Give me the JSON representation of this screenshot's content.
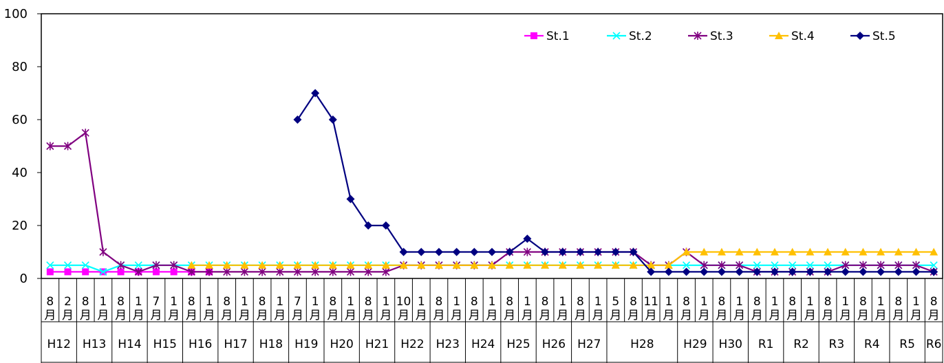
{
  "chart_data": {
    "type": "line",
    "title": "",
    "xlabel": "",
    "ylabel": "",
    "ylim": [
      0,
      100
    ],
    "yticks": [
      "0",
      "20",
      "40",
      "60",
      "80",
      "100"
    ],
    "grid": false,
    "legend_position": "top-right",
    "months": [
      "8",
      "2",
      "8",
      "1",
      "8",
      "1",
      "7",
      "1",
      "8",
      "1",
      "8",
      "1",
      "8",
      "1",
      "7",
      "1",
      "8",
      "1",
      "8",
      "1",
      "10",
      "1",
      "8",
      "1",
      "8",
      "1",
      "8",
      "1",
      "8",
      "1",
      "8",
      "1",
      "5",
      "8",
      "11",
      "1",
      "8",
      "1",
      "8",
      "1",
      "8",
      "1",
      "8",
      "1",
      "8",
      "1",
      "8",
      "1",
      "8",
      "1",
      "8"
    ],
    "month_suffix": "月",
    "years": [
      {
        "label": "H12",
        "n": 2
      },
      {
        "label": "H13",
        "n": 2
      },
      {
        "label": "H14",
        "n": 2
      },
      {
        "label": "H15",
        "n": 2
      },
      {
        "label": "H16",
        "n": 2
      },
      {
        "label": "H17",
        "n": 2
      },
      {
        "label": "H18",
        "n": 2
      },
      {
        "label": "H19",
        "n": 2
      },
      {
        "label": "H20",
        "n": 2
      },
      {
        "label": "H21",
        "n": 2
      },
      {
        "label": "H22",
        "n": 2
      },
      {
        "label": "H23",
        "n": 2
      },
      {
        "label": "H24",
        "n": 2
      },
      {
        "label": "H25",
        "n": 2
      },
      {
        "label": "H26",
        "n": 2
      },
      {
        "label": "H27",
        "n": 2
      },
      {
        "label": "H28",
        "n": 4
      },
      {
        "label": "H29",
        "n": 2
      },
      {
        "label": "H30",
        "n": 2
      },
      {
        "label": "R1",
        "n": 2
      },
      {
        "label": "R2",
        "n": 2
      },
      {
        "label": "R3",
        "n": 2
      },
      {
        "label": "R4",
        "n": 2
      },
      {
        "label": "R5",
        "n": 2
      },
      {
        "label": "R6",
        "n": 1
      }
    ],
    "series": [
      {
        "name": "St.1",
        "color": "#ff00ff",
        "marker": "square",
        "values": [
          2.5,
          2.5,
          2.5,
          2.5,
          2.5,
          2.5,
          2.5,
          2.5,
          2.5,
          2.5,
          null,
          null,
          null,
          null,
          null,
          null,
          null,
          null,
          null,
          null,
          null,
          null,
          null,
          null,
          null,
          null,
          null,
          null,
          null,
          null,
          null,
          null,
          null,
          null,
          null,
          null,
          null,
          null,
          null,
          null,
          null,
          null,
          null,
          null,
          null,
          null,
          null,
          null,
          null,
          null,
          null
        ]
      },
      {
        "name": "St.2",
        "color": "#00ffff",
        "marker": "x",
        "values": [
          5,
          5,
          5,
          2.5,
          5,
          5,
          5,
          5,
          5,
          5,
          5,
          5,
          5,
          5,
          5,
          5,
          5,
          5,
          5,
          5,
          5,
          5,
          5,
          5,
          5,
          5,
          5,
          5,
          5,
          5,
          5,
          5,
          5,
          5,
          5,
          5,
          5,
          5,
          5,
          5,
          5,
          5,
          5,
          5,
          5,
          5,
          5,
          5,
          5,
          5,
          5
        ]
      },
      {
        "name": "St.3",
        "color": "#800080",
        "marker": "asterisk",
        "values": [
          50,
          50,
          55,
          10,
          5,
          2.5,
          5,
          5,
          2.5,
          2.5,
          2.5,
          2.5,
          2.5,
          2.5,
          2.5,
          2.5,
          2.5,
          2.5,
          2.5,
          2.5,
          5,
          5,
          5,
          5,
          5,
          5,
          10,
          10,
          10,
          10,
          10,
          10,
          10,
          10,
          5,
          5,
          10,
          5,
          5,
          5,
          2.5,
          2.5,
          2.5,
          2.5,
          2.5,
          5,
          5,
          5,
          5,
          5,
          2.5
        ]
      },
      {
        "name": "St.4",
        "color": "#ffc000",
        "marker": "triangle",
        "values": [
          null,
          null,
          null,
          null,
          null,
          null,
          null,
          null,
          5,
          5,
          5,
          5,
          5,
          5,
          5,
          5,
          5,
          5,
          5,
          5,
          5,
          5,
          5,
          5,
          5,
          5,
          5,
          5,
          5,
          5,
          5,
          5,
          5,
          5,
          5,
          5,
          10,
          10,
          10,
          10,
          10,
          10,
          10,
          10,
          10,
          10,
          10,
          10,
          10,
          10,
          10
        ]
      },
      {
        "name": "St.5",
        "color": "#000080",
        "marker": "diamond",
        "values": [
          null,
          null,
          null,
          null,
          null,
          null,
          null,
          null,
          null,
          null,
          null,
          null,
          null,
          null,
          60,
          70,
          60,
          30,
          20,
          20,
          10,
          10,
          10,
          10,
          10,
          10,
          10,
          15,
          10,
          10,
          10,
          10,
          10,
          10,
          2.5,
          2.5,
          2.5,
          2.5,
          2.5,
          2.5,
          2.5,
          2.5,
          2.5,
          2.5,
          2.5,
          2.5,
          2.5,
          2.5,
          2.5,
          2.5,
          2.5
        ]
      }
    ]
  }
}
